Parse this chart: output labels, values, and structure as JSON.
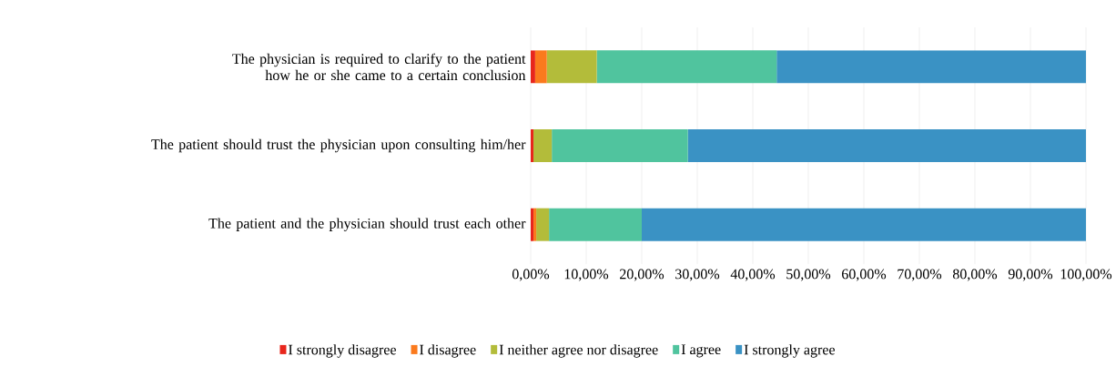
{
  "chart_data": {
    "type": "bar",
    "orientation": "horizontal",
    "stacked": true,
    "categories": [
      "The physician is required to clarify to the patient how he or she came to a certain conclusion",
      "The patient should trust the physician upon consulting him/her",
      "The patient and the physician should trust each other"
    ],
    "series": [
      {
        "name": "I strongly disagree",
        "color": "#e8261c",
        "values": [
          0.8,
          0.5,
          0.5
        ]
      },
      {
        "name": "I disagree",
        "color": "#fb7a1d",
        "values": [
          2.1,
          0,
          0.5
        ]
      },
      {
        "name": "I neither agree nor disagree",
        "color": "#b3bc3a",
        "values": [
          9.0,
          3.3,
          2.3
        ]
      },
      {
        "name": "I agree",
        "color": "#50c49e",
        "values": [
          32.4,
          24.5,
          16.7
        ]
      },
      {
        "name": "I strongly agree",
        "color": "#3a92c4",
        "values": [
          55.7,
          71.7,
          80.0
        ]
      }
    ],
    "xlim": [
      0,
      100
    ],
    "xticks": [
      {
        "value": 0,
        "label": "0,00%"
      },
      {
        "value": 10,
        "label": "10,00%"
      },
      {
        "value": 20,
        "label": "20,00%"
      },
      {
        "value": 30,
        "label": "30,00%"
      },
      {
        "value": 40,
        "label": "40,00%"
      },
      {
        "value": 50,
        "label": "50,00%"
      },
      {
        "value": 60,
        "label": "60,00%"
      },
      {
        "value": 70,
        "label": "70,00%"
      },
      {
        "value": 80,
        "label": "80,00%"
      },
      {
        "value": 90,
        "label": "90,00%"
      },
      {
        "value": 100,
        "label": "100,00%"
      }
    ],
    "grid": "x",
    "legend": "bottom"
  }
}
